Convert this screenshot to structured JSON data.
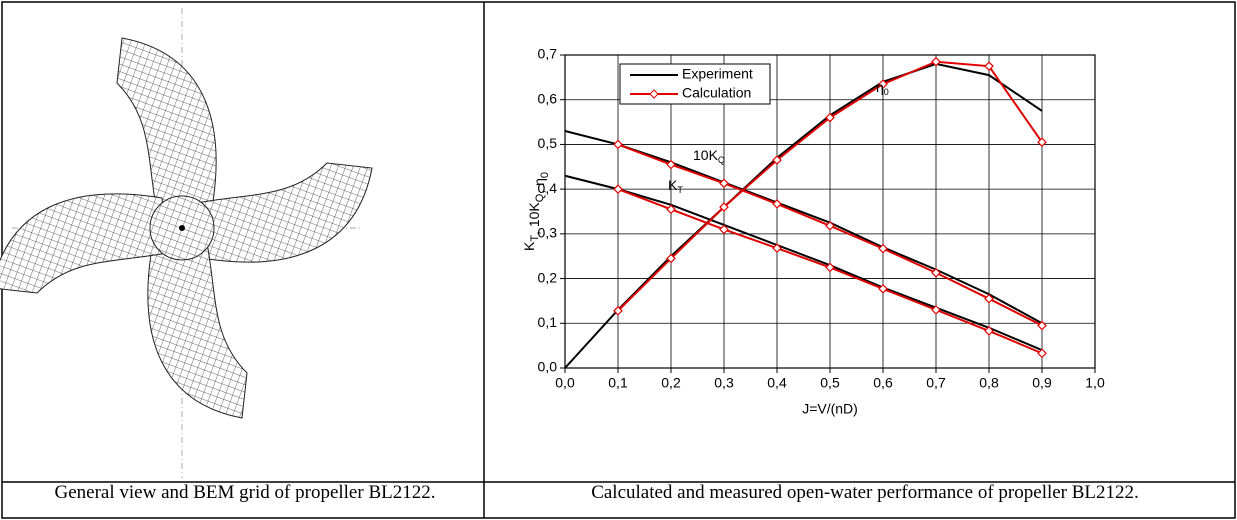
{
  "captions": [
    "General view and BEM grid of propeller BL2122.",
    "Calculated and measured open-water performance of propeller BL2122."
  ],
  "chart_data": {
    "type": "line",
    "xlabel": "J=V/(nD)",
    "ylabel": [
      {
        "text": "K",
        "sub": "T"
      },
      {
        "text": ", 10K",
        "sub": "Q"
      },
      {
        "text": ", η",
        "sub": "0"
      }
    ],
    "annotations": [
      {
        "text": "η",
        "sub": "0"
      },
      {
        "text": "10K",
        "sub": "Q"
      },
      {
        "text": "K",
        "sub": "T"
      }
    ],
    "xlim": [
      0,
      1.0
    ],
    "ylim": [
      0,
      0.7
    ],
    "xticks": [
      {
        "value": 0,
        "label": "0,0"
      },
      {
        "value": 0.1,
        "label": "0,1"
      },
      {
        "value": 0.2,
        "label": "0,2"
      },
      {
        "value": 0.3,
        "label": "0,3"
      },
      {
        "value": 0.4,
        "label": "0,4"
      },
      {
        "value": 0.5,
        "label": "0,5"
      },
      {
        "value": 0.6,
        "label": "0,6"
      },
      {
        "value": 0.7,
        "label": "0,7"
      },
      {
        "value": 0.8,
        "label": "0,8"
      },
      {
        "value": 0.9,
        "label": "0,9"
      },
      {
        "value": 1.0,
        "label": "1,0"
      }
    ],
    "yticks": [
      {
        "value": 0,
        "label": "0,0"
      },
      {
        "value": 0.1,
        "label": "0,1"
      },
      {
        "value": 0.2,
        "label": "0,2"
      },
      {
        "value": 0.3,
        "label": "0,3"
      },
      {
        "value": 0.4,
        "label": "0,4"
      },
      {
        "value": 0.5,
        "label": "0,5"
      },
      {
        "value": 0.6,
        "label": "0,6"
      },
      {
        "value": 0.7,
        "label": "0,7"
      }
    ],
    "grid": true,
    "legend": "upper left",
    "series": [
      {
        "name": "Experiment",
        "color": "#000000",
        "marker": "none",
        "x": [
          0,
          0.1,
          0.2,
          0.3,
          0.4,
          0.5,
          0.6,
          0.7,
          0.8,
          0.9
        ],
        "curves": [
          [
            0.43,
            0.4,
            0.365,
            0.32,
            0.275,
            0.23,
            0.18,
            0.135,
            0.09,
            0.04
          ],
          [
            0.53,
            0.5,
            0.46,
            0.415,
            0.37,
            0.325,
            0.27,
            0.22,
            0.165,
            0.1
          ],
          [
            0,
            0.13,
            0.25,
            0.36,
            0.47,
            0.565,
            0.64,
            0.68,
            0.655,
            0.575
          ]
        ]
      },
      {
        "name": "Calculation",
        "color": "#e00000",
        "marker": "diamond",
        "x": [
          0.1,
          0.2,
          0.3,
          0.4,
          0.5,
          0.6,
          0.7,
          0.8,
          0.9
        ],
        "curves": [
          [
            0.4,
            0.355,
            0.31,
            0.268,
            0.225,
            0.177,
            0.13,
            0.083,
            0.033
          ],
          [
            0.5,
            0.455,
            0.413,
            0.367,
            0.318,
            0.267,
            0.213,
            0.155,
            0.095
          ],
          [
            0.128,
            0.245,
            0.36,
            0.465,
            0.56,
            0.635,
            0.685,
            0.675,
            0.505
          ]
        ]
      }
    ]
  }
}
